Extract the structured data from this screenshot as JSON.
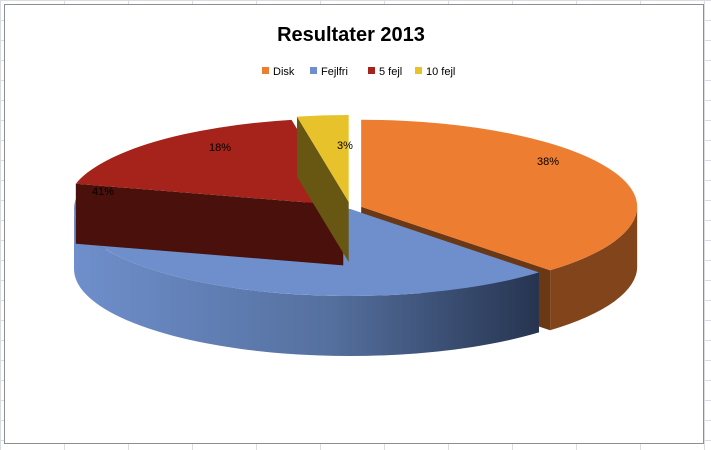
{
  "chart_data": {
    "type": "pie",
    "title": "Resultater 2013",
    "categories": [
      "Disk",
      "Fejlfri",
      "5 fejl",
      "10 fejl"
    ],
    "values": [
      38,
      41,
      18,
      3
    ],
    "value_labels": [
      "38%",
      "41%",
      "18%",
      "3%"
    ],
    "colors": [
      "#ED7D31",
      "#6F8FCC",
      "#A5231A",
      "#E8C22A"
    ],
    "legend_position": "top",
    "style": "3d-exploded"
  }
}
